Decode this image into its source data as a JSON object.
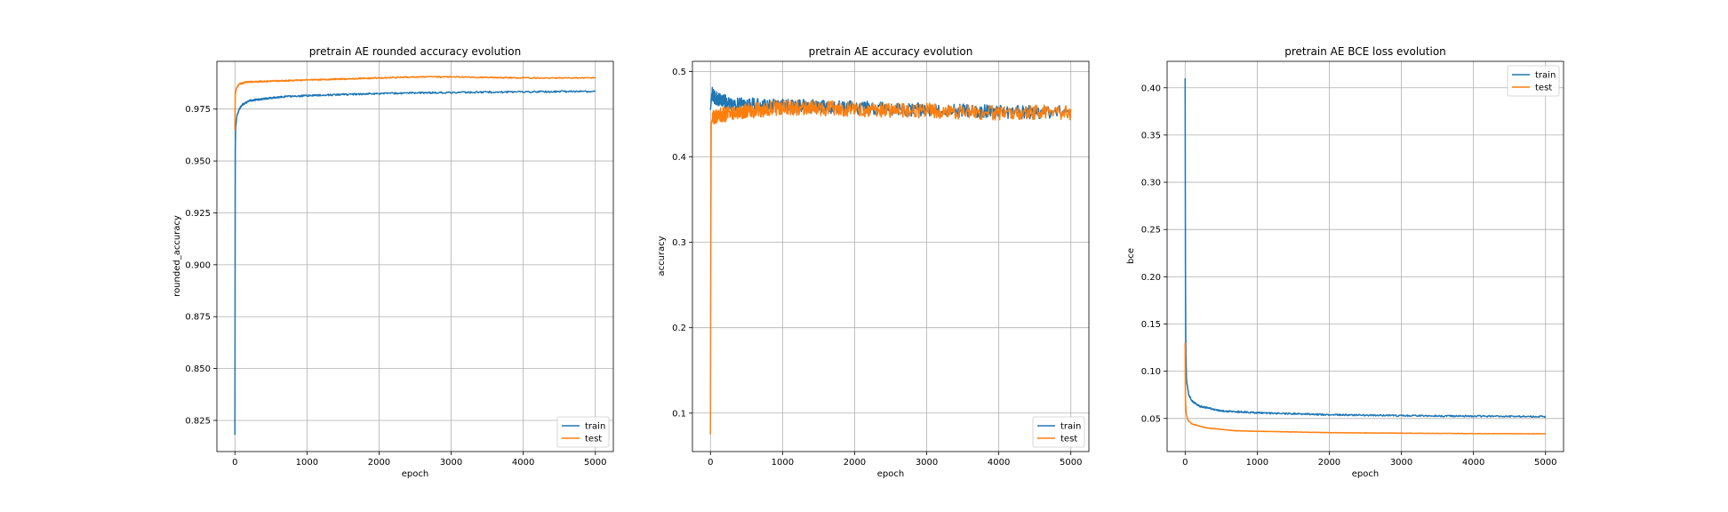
{
  "colors": {
    "train": "#1f77b4",
    "test": "#ff7f0e",
    "grid": "#b0b0b0"
  },
  "chart_data": [
    {
      "type": "line",
      "title": "pretrain AE rounded accuracy evolution",
      "xlabel": "epoch",
      "ylabel": "rounded_accuracy",
      "xlim": [
        -250,
        5250
      ],
      "ylim": [
        0.81,
        0.998
      ],
      "xticks": [
        0,
        1000,
        2000,
        3000,
        4000,
        5000
      ],
      "yticks": [
        0.825,
        0.85,
        0.875,
        0.9,
        0.925,
        0.95,
        0.975
      ],
      "ytick_labels": [
        "0.825",
        "0.850",
        "0.875",
        "0.900",
        "0.925",
        "0.950",
        "0.975"
      ],
      "grid": true,
      "legend": "lower-right",
      "series": [
        {
          "name": "train",
          "noise": 0.0004,
          "points": [
            [
              0,
              0.818
            ],
            [
              5,
              0.955
            ],
            [
              10,
              0.966
            ],
            [
              30,
              0.972
            ],
            [
              60,
              0.975
            ],
            [
              100,
              0.977
            ],
            [
              200,
              0.979
            ],
            [
              400,
              0.98
            ],
            [
              700,
              0.981
            ],
            [
              1000,
              0.9815
            ],
            [
              2000,
              0.9825
            ],
            [
              3000,
              0.983
            ],
            [
              4000,
              0.9833
            ],
            [
              5000,
              0.9835
            ]
          ]
        },
        {
          "name": "test",
          "noise": 0.0003,
          "points": [
            [
              0,
              0.965
            ],
            [
              5,
              0.982
            ],
            [
              20,
              0.985
            ],
            [
              60,
              0.987
            ],
            [
              150,
              0.988
            ],
            [
              500,
              0.9885
            ],
            [
              1000,
              0.989
            ],
            [
              2000,
              0.99
            ],
            [
              2500,
              0.9905
            ],
            [
              3000,
              0.9905
            ],
            [
              4000,
              0.99
            ],
            [
              5000,
              0.99
            ]
          ]
        }
      ]
    },
    {
      "type": "line",
      "title": "pretrain AE accuracy evolution",
      "xlabel": "epoch",
      "ylabel": "accuracy",
      "xlim": [
        -250,
        5250
      ],
      "ylim": [
        0.055,
        0.512
      ],
      "xticks": [
        0,
        1000,
        2000,
        3000,
        4000,
        5000
      ],
      "yticks": [
        0.1,
        0.2,
        0.3,
        0.4,
        0.5
      ],
      "ytick_labels": [
        "0.1",
        "0.2",
        "0.3",
        "0.4",
        "0.5"
      ],
      "grid": true,
      "legend": "lower-right",
      "series": [
        {
          "name": "train",
          "noise": 0.008,
          "points": [
            [
              0,
              0.455
            ],
            [
              20,
              0.475
            ],
            [
              50,
              0.47
            ],
            [
              300,
              0.462
            ],
            [
              1000,
              0.46
            ],
            [
              2000,
              0.458
            ],
            [
              3000,
              0.455
            ],
            [
              4000,
              0.453
            ],
            [
              5000,
              0.452
            ]
          ]
        },
        {
          "name": "test",
          "noise": 0.009,
          "points": [
            [
              0,
              0.075
            ],
            [
              5,
              0.3
            ],
            [
              10,
              0.44
            ],
            [
              30,
              0.445
            ],
            [
              100,
              0.448
            ],
            [
              300,
              0.452
            ],
            [
              1000,
              0.458
            ],
            [
              2000,
              0.456
            ],
            [
              3000,
              0.454
            ],
            [
              4000,
              0.452
            ],
            [
              5000,
              0.452
            ]
          ]
        }
      ]
    },
    {
      "type": "line",
      "title": "pretrain AE BCE loss evolution",
      "xlabel": "epoch",
      "ylabel": "bce",
      "xlim": [
        -250,
        5250
      ],
      "ylim": [
        0.015,
        0.428
      ],
      "xticks": [
        0,
        1000,
        2000,
        3000,
        4000,
        5000
      ],
      "yticks": [
        0.05,
        0.1,
        0.15,
        0.2,
        0.25,
        0.3,
        0.35,
        0.4
      ],
      "ytick_labels": [
        "0.05",
        "0.10",
        "0.15",
        "0.20",
        "0.25",
        "0.30",
        "0.35",
        "0.40"
      ],
      "grid": true,
      "legend": "upper-right",
      "series": [
        {
          "name": "train",
          "noise": 0.0008,
          "points": [
            [
              0,
              0.41
            ],
            [
              5,
              0.2
            ],
            [
              10,
              0.12
            ],
            [
              20,
              0.09
            ],
            [
              50,
              0.075
            ],
            [
              100,
              0.068
            ],
            [
              200,
              0.063
            ],
            [
              500,
              0.058
            ],
            [
              1000,
              0.056
            ],
            [
              2000,
              0.054
            ],
            [
              3000,
              0.053
            ],
            [
              4000,
              0.0525
            ],
            [
              5000,
              0.052
            ]
          ]
        },
        {
          "name": "test",
          "noise": 0.0002,
          "points": [
            [
              0,
              0.13
            ],
            [
              5,
              0.07
            ],
            [
              15,
              0.055
            ],
            [
              40,
              0.048
            ],
            [
              100,
              0.044
            ],
            [
              300,
              0.04
            ],
            [
              700,
              0.037
            ],
            [
              1000,
              0.0365
            ],
            [
              2000,
              0.035
            ],
            [
              3000,
              0.0345
            ],
            [
              4000,
              0.034
            ],
            [
              5000,
              0.0338
            ]
          ]
        }
      ]
    }
  ]
}
